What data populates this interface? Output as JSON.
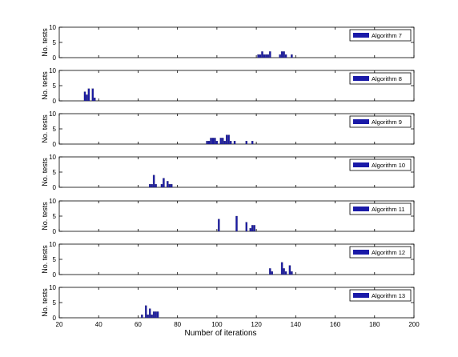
{
  "chart_data": [
    {
      "type": "bar",
      "legend": "Algorithm 7",
      "ylabel": "No. tests",
      "ylim": [
        0,
        10
      ],
      "yticks": [
        0,
        5,
        10
      ],
      "bars": [
        {
          "x": 121,
          "y": 1
        },
        {
          "x": 122,
          "y": 1
        },
        {
          "x": 123,
          "y": 2
        },
        {
          "x": 124,
          "y": 1
        },
        {
          "x": 125,
          "y": 1
        },
        {
          "x": 126,
          "y": 1
        },
        {
          "x": 127,
          "y": 2
        },
        {
          "x": 132,
          "y": 1
        },
        {
          "x": 133,
          "y": 2
        },
        {
          "x": 134,
          "y": 2
        },
        {
          "x": 135,
          "y": 1
        },
        {
          "x": 138,
          "y": 1
        }
      ]
    },
    {
      "type": "bar",
      "legend": "Algorithm 8",
      "ylabel": "No. tests",
      "ylim": [
        0,
        10
      ],
      "yticks": [
        0,
        5,
        10
      ],
      "bars": [
        {
          "x": 33,
          "y": 3
        },
        {
          "x": 34,
          "y": 2
        },
        {
          "x": 35,
          "y": 4
        },
        {
          "x": 37,
          "y": 4
        },
        {
          "x": 38,
          "y": 1
        }
      ]
    },
    {
      "type": "bar",
      "legend": "Algorithm 9",
      "ylabel": "No. tests",
      "ylim": [
        0,
        10
      ],
      "yticks": [
        0,
        5,
        10
      ],
      "bars": [
        {
          "x": 95,
          "y": 1
        },
        {
          "x": 96,
          "y": 1
        },
        {
          "x": 97,
          "y": 2
        },
        {
          "x": 98,
          "y": 2
        },
        {
          "x": 99,
          "y": 2
        },
        {
          "x": 100,
          "y": 1
        },
        {
          "x": 102,
          "y": 2
        },
        {
          "x": 103,
          "y": 2
        },
        {
          "x": 104,
          "y": 1
        },
        {
          "x": 105,
          "y": 3
        },
        {
          "x": 106,
          "y": 3
        },
        {
          "x": 107,
          "y": 1
        },
        {
          "x": 109,
          "y": 1
        },
        {
          "x": 115,
          "y": 1
        },
        {
          "x": 118,
          "y": 1
        }
      ]
    },
    {
      "type": "bar",
      "legend": "Algorithm 10",
      "ylabel": "No. tests",
      "ylim": [
        0,
        10
      ],
      "yticks": [
        0,
        5,
        10
      ],
      "bars": [
        {
          "x": 66,
          "y": 1
        },
        {
          "x": 67,
          "y": 1
        },
        {
          "x": 68,
          "y": 4
        },
        {
          "x": 69,
          "y": 1
        },
        {
          "x": 72,
          "y": 1
        },
        {
          "x": 73,
          "y": 3
        },
        {
          "x": 75,
          "y": 2
        },
        {
          "x": 76,
          "y": 1
        },
        {
          "x": 77,
          "y": 1
        }
      ]
    },
    {
      "type": "bar",
      "legend": "Algorithm 11",
      "ylabel": "No. tests",
      "ylim": [
        0,
        10
      ],
      "yticks": [
        0,
        5,
        10
      ],
      "bars": [
        {
          "x": 101,
          "y": 4
        },
        {
          "x": 110,
          "y": 5
        },
        {
          "x": 115,
          "y": 3
        },
        {
          "x": 117,
          "y": 1
        },
        {
          "x": 118,
          "y": 2
        },
        {
          "x": 119,
          "y": 2
        }
      ]
    },
    {
      "type": "bar",
      "legend": "Algorithm 12",
      "ylabel": "No. tests",
      "ylim": [
        0,
        10
      ],
      "yticks": [
        0,
        5,
        10
      ],
      "bars": [
        {
          "x": 127,
          "y": 2
        },
        {
          "x": 128,
          "y": 1
        },
        {
          "x": 133,
          "y": 4
        },
        {
          "x": 134,
          "y": 2
        },
        {
          "x": 135,
          "y": 1
        },
        {
          "x": 137,
          "y": 3
        },
        {
          "x": 138,
          "y": 1
        }
      ]
    },
    {
      "type": "bar",
      "legend": "Algorithm 13",
      "ylabel": "No. tests",
      "ylim": [
        0,
        10
      ],
      "yticks": [
        0,
        5,
        10
      ],
      "bars": [
        {
          "x": 62,
          "y": 1
        },
        {
          "x": 64,
          "y": 4
        },
        {
          "x": 65,
          "y": 1
        },
        {
          "x": 66,
          "y": 3
        },
        {
          "x": 67,
          "y": 1
        },
        {
          "x": 68,
          "y": 2
        },
        {
          "x": 69,
          "y": 2
        },
        {
          "x": 70,
          "y": 2
        }
      ]
    }
  ],
  "xaxis": {
    "label": "Number of iterations",
    "xlim": [
      20,
      200
    ],
    "ticks": [
      20,
      40,
      60,
      80,
      100,
      120,
      140,
      160,
      180,
      200
    ]
  },
  "colors": {
    "bar_fill": "#1a1aa8",
    "bar_edge": "#24245e",
    "axis": "#000000",
    "background": "#ffffff"
  }
}
